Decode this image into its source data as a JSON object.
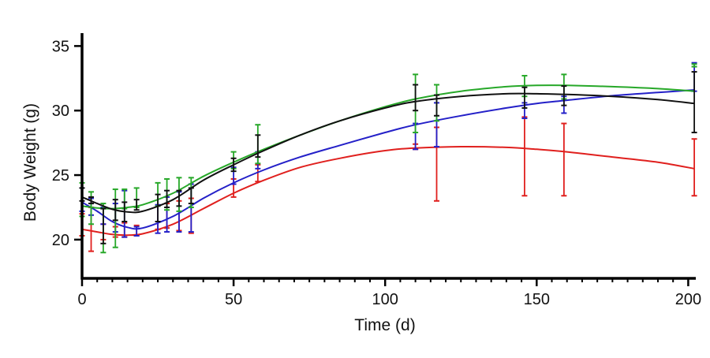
{
  "chart_data": {
    "type": "line",
    "title": "",
    "xlabel": "Time (d)",
    "ylabel": "Body Weight (g)",
    "xlim": [
      0,
      202.5
    ],
    "ylim": [
      17,
      36
    ],
    "xticks": [
      0,
      50,
      100,
      150,
      200
    ],
    "xtick_labels": [
      "0",
      "50",
      "100",
      "150",
      "200"
    ],
    "x_minor_step": 5,
    "yticks": [
      20,
      25,
      30,
      35
    ],
    "ytick_labels": [
      "20",
      "25",
      "30",
      "35"
    ],
    "grid": false,
    "legend": "none",
    "x": [
      0,
      3,
      7,
      11,
      14,
      18,
      25,
      28,
      32,
      36,
      50,
      58,
      110,
      117,
      146,
      159,
      202
    ],
    "series": [
      {
        "name": "red",
        "color": "#e0201e",
        "fit_x": [
          0,
          5,
          10,
          15,
          20,
          30,
          40,
          50,
          60,
          72,
          85,
          100,
          110,
          125,
          140,
          150,
          160,
          175,
          190,
          202
        ],
        "fit_y": [
          20.8,
          20.6,
          20.4,
          20.35,
          20.45,
          21.2,
          22.4,
          23.6,
          24.6,
          25.6,
          26.3,
          26.9,
          27.1,
          27.2,
          27.15,
          27.0,
          26.8,
          26.4,
          26.0,
          25.5
        ],
        "err_low": [
          20.3,
          19.1,
          20.0,
          20.2,
          20.2,
          20.3,
          20.8,
          20.9,
          20.7,
          20.5,
          23.3,
          24.5,
          27.0,
          23.0,
          23.4,
          23.4,
          23.4
        ],
        "err_high": [
          22.0,
          22.5,
          21.2,
          21.0,
          21.3,
          21.1,
          22.6,
          22.8,
          23.0,
          23.2,
          24.7,
          25.8,
          27.4,
          28.7,
          29.5,
          29.0,
          27.8
        ]
      },
      {
        "name": "blue",
        "color": "#2420c8",
        "fit_x": [
          0,
          5,
          10,
          15,
          20,
          30,
          40,
          50,
          60,
          72,
          85,
          100,
          110,
          125,
          140,
          150,
          160,
          175,
          190,
          202
        ],
        "fit_y": [
          22.9,
          22.2,
          21.4,
          20.95,
          20.9,
          21.8,
          23.2,
          24.4,
          25.4,
          26.4,
          27.3,
          28.3,
          28.9,
          29.6,
          30.2,
          30.55,
          30.8,
          31.15,
          31.4,
          31.6
        ],
        "err_low": [
          22.2,
          21.9,
          21.2,
          20.6,
          20.2,
          20.3,
          20.5,
          20.6,
          20.6,
          20.6,
          24.3,
          25.5,
          27.0,
          27.2,
          29.4,
          29.8,
          31.5
        ],
        "err_high": [
          24.0,
          23.2,
          22.5,
          22.8,
          23.8,
          21.0,
          22.7,
          23.3,
          23.7,
          24.3,
          25.6,
          26.8,
          29.0,
          30.6,
          30.6,
          31.1,
          33.7
        ]
      },
      {
        "name": "green",
        "color": "#27a829",
        "fit_x": [
          0,
          5,
          10,
          15,
          20,
          30,
          40,
          50,
          60,
          72,
          85,
          100,
          110,
          125,
          140,
          150,
          160,
          175,
          190,
          202
        ],
        "fit_y": [
          22.6,
          22.45,
          22.4,
          22.5,
          22.7,
          23.6,
          24.9,
          26.0,
          27.0,
          28.1,
          29.2,
          30.3,
          30.9,
          31.5,
          31.85,
          31.95,
          31.95,
          31.85,
          31.7,
          31.5
        ],
        "err_low": [
          21.8,
          21.2,
          19.0,
          19.4,
          22.4,
          22.5,
          22.6,
          22.3,
          22.2,
          22.5,
          25.5,
          25.9,
          28.3,
          29.2,
          31.1,
          30.9,
          33.4
        ],
        "err_high": [
          24.4,
          23.7,
          22.8,
          23.9,
          23.9,
          24.0,
          24.4,
          24.7,
          24.8,
          24.8,
          26.8,
          28.9,
          32.8,
          32.0,
          32.7,
          32.8,
          33.6
        ]
      },
      {
        "name": "black",
        "color": "#111111",
        "fit_x": [
          0,
          5,
          10,
          15,
          20,
          30,
          40,
          50,
          60,
          72,
          85,
          100,
          110,
          125,
          140,
          150,
          160,
          175,
          190,
          202
        ],
        "fit_y": [
          23.3,
          22.8,
          22.35,
          22.15,
          22.2,
          23.1,
          24.6,
          25.8,
          26.9,
          28.1,
          29.2,
          30.2,
          30.7,
          31.1,
          31.3,
          31.3,
          31.25,
          31.1,
          30.85,
          30.55
        ],
        "err_low": [
          23.0,
          22.8,
          19.7,
          21.5,
          21.4,
          22.3,
          21.4,
          22.5,
          22.6,
          22.8,
          25.3,
          26.4,
          30.0,
          29.6,
          30.2,
          30.4,
          28.3
        ],
        "err_high": [
          24.0,
          23.3,
          22.4,
          23.1,
          22.9,
          23.1,
          23.5,
          23.8,
          23.8,
          24.0,
          26.3,
          28.1,
          32.0,
          31.2,
          31.8,
          31.9,
          33.0
        ]
      }
    ]
  }
}
